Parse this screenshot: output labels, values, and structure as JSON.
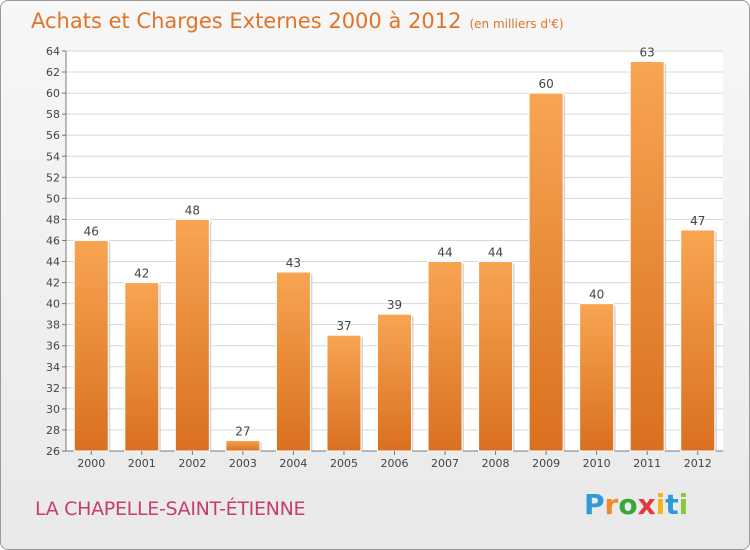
{
  "chart_data": {
    "type": "bar",
    "title": "Achats et Charges Externes 2000 à 2012",
    "subtitle": "(en milliers d'€)",
    "categories": [
      "2000",
      "2001",
      "2002",
      "2003",
      "2004",
      "2005",
      "2006",
      "2007",
      "2008",
      "2009",
      "2010",
      "2011",
      "2012"
    ],
    "values": [
      46,
      42,
      48,
      27,
      43,
      37,
      39,
      44,
      44,
      60,
      40,
      63,
      47
    ],
    "ylim": [
      26,
      64
    ],
    "yticks": [
      26,
      28,
      30,
      32,
      34,
      36,
      38,
      40,
      42,
      44,
      46,
      48,
      50,
      52,
      54,
      56,
      58,
      60,
      62,
      64
    ],
    "xlabel": "",
    "ylabel": "",
    "grid": true,
    "legend": "none",
    "bar_color": "#f0953d"
  },
  "location": "LA CHAPELLE-SAINT-ÉTIENNE",
  "logo": {
    "letters": [
      "P",
      "r",
      "o",
      "x",
      "i",
      "t",
      "i"
    ],
    "colors": [
      "#2f9ad6",
      "#f08a24",
      "#3aa53a",
      "#e03a3a",
      "#f2b51d",
      "#2f9ad6",
      "#8cc63e"
    ]
  }
}
